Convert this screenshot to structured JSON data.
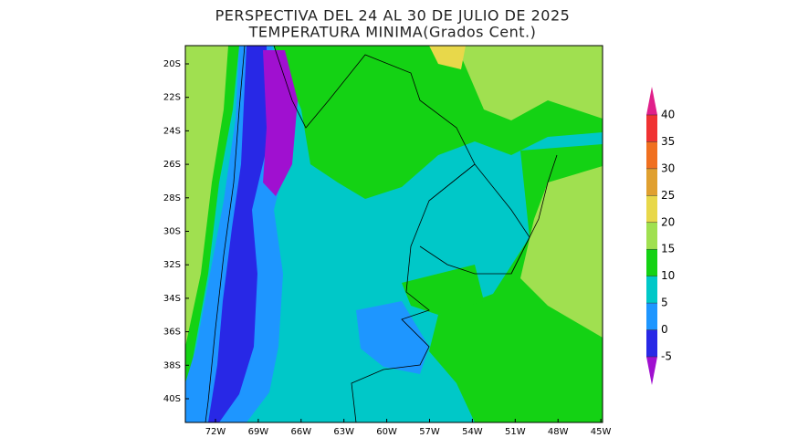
{
  "title": [
    "PERSPECTIVA DEL 24 AL 30 DE JULIO DE 2025",
    "TEMPERATURA MINIMA(Grados Cent.)"
  ],
  "latitude_labels": [
    "20S",
    "22S",
    "24S",
    "26S",
    "28S",
    "30S",
    "32S",
    "34S",
    "36S",
    "38S",
    "40S"
  ],
  "longitude_labels": [
    "72W",
    "69W",
    "66W",
    "63W",
    "60W",
    "57W",
    "54W",
    "51W",
    "48W",
    "45W"
  ],
  "colorbar": {
    "levels": [
      40,
      35,
      30,
      25,
      20,
      15,
      10,
      5,
      0,
      -5
    ],
    "colors": [
      "#e0208a",
      "#f03232",
      "#f07020",
      "#e0a030",
      "#e8d84a",
      "#a0e050",
      "#14d214",
      "#00c8c8",
      "#1e96ff",
      "#2828e6",
      "#a010d0"
    ]
  }
}
